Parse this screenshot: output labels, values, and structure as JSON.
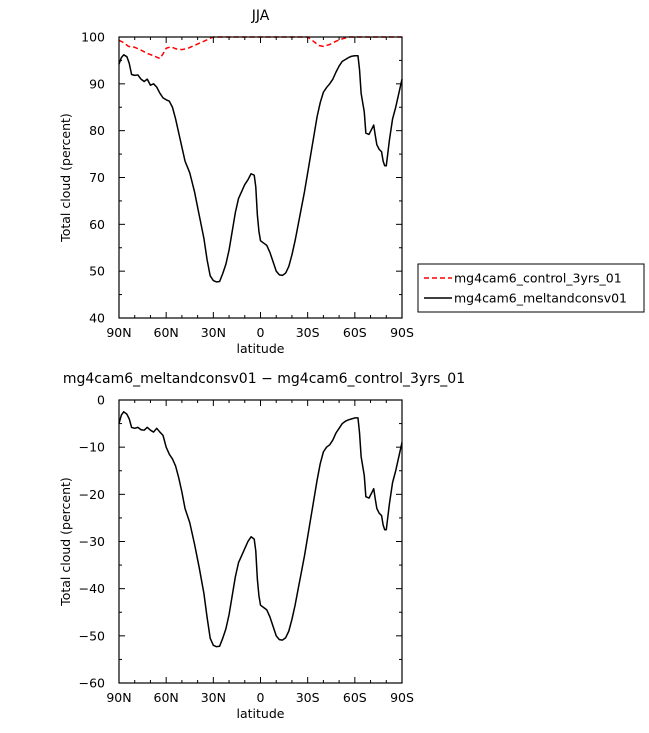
{
  "chart_data": [
    {
      "type": "line",
      "title": "JJA",
      "xlabel": "latitude",
      "ylabel": "Total cloud (percent)",
      "xlim": [
        90,
        -90
      ],
      "ylim": [
        40,
        100
      ],
      "xticks": [
        90,
        60,
        30,
        0,
        -30,
        -60,
        -90
      ],
      "xtick_labels": [
        "90N",
        "60N",
        "30N",
        "0",
        "30S",
        "60S",
        "90S"
      ],
      "yticks": [
        40,
        50,
        60,
        70,
        80,
        90,
        100
      ],
      "ytick_labels": [
        "40",
        "50",
        "60",
        "70",
        "80",
        "90",
        "100"
      ],
      "grid": false,
      "legend_position": "right",
      "series": [
        {
          "name": "mg4cam6_control_3yrs_01",
          "color": "#ff0000",
          "dash": "dashed",
          "points": [
            [
              90,
              99.3
            ],
            [
              87,
              98.8
            ],
            [
              84,
              98.0
            ],
            [
              80,
              97.8
            ],
            [
              76,
              97.2
            ],
            [
              72,
              96.5
            ],
            [
              68,
              96.0
            ],
            [
              64,
              95.4
            ],
            [
              62,
              96.4
            ],
            [
              60,
              97.6
            ],
            [
              57,
              97.9
            ],
            [
              54,
              97.5
            ],
            [
              50,
              97.3
            ],
            [
              46,
              97.6
            ],
            [
              42,
              98.2
            ],
            [
              38,
              98.8
            ],
            [
              34,
              99.4
            ],
            [
              30,
              100
            ],
            [
              20,
              100
            ],
            [
              0,
              100
            ],
            [
              -15,
              100
            ],
            [
              -30,
              100
            ],
            [
              -34,
              99.0
            ],
            [
              -37,
              98.2
            ],
            [
              -40,
              98.0
            ],
            [
              -44,
              98.4
            ],
            [
              -48,
              99.1
            ],
            [
              -52,
              99.6
            ],
            [
              -56,
              100
            ],
            [
              -90,
              100
            ]
          ]
        },
        {
          "name": "mg4cam6_meltandconsv01",
          "color": "#000000",
          "dash": "solid",
          "points": [
            [
              90,
              94.2
            ],
            [
              88.5,
              95.6
            ],
            [
              87,
              96.2
            ],
            [
              85,
              95.8
            ],
            [
              83.5,
              94.4
            ],
            [
              82,
              92.0
            ],
            [
              80,
              91.8
            ],
            [
              78,
              91.9
            ],
            [
              76,
              91.0
            ],
            [
              74,
              90.5
            ],
            [
              72,
              91.0
            ],
            [
              70,
              89.7
            ],
            [
              68,
              90.0
            ],
            [
              66,
              89.3
            ],
            [
              64,
              88.0
            ],
            [
              62,
              87.0
            ],
            [
              60,
              86.6
            ],
            [
              58,
              86.3
            ],
            [
              56,
              85.0
            ],
            [
              54,
              82.5
            ],
            [
              52,
              79.5
            ],
            [
              50,
              76.5
            ],
            [
              48,
              73.5
            ],
            [
              45,
              71.0
            ],
            [
              42,
              67.0
            ],
            [
              39,
              62.0
            ],
            [
              36,
              57.0
            ],
            [
              34,
              52.5
            ],
            [
              32,
              49.0
            ],
            [
              30,
              48.0
            ],
            [
              28,
              47.7
            ],
            [
              26,
              47.8
            ],
            [
              24,
              49.5
            ],
            [
              22,
              51.5
            ],
            [
              20,
              54.5
            ],
            [
              18,
              58.5
            ],
            [
              16,
              62.5
            ],
            [
              14,
              65.5
            ],
            [
              12,
              67.0
            ],
            [
              10,
              68.5
            ],
            [
              8,
              69.5
            ],
            [
              6,
              70.8
            ],
            [
              4,
              70.5
            ],
            [
              3,
              68.0
            ],
            [
              2,
              62.0
            ],
            [
              1,
              58.5
            ],
            [
              0,
              56.5
            ],
            [
              -2,
              56.0
            ],
            [
              -4,
              55.5
            ],
            [
              -6,
              54.0
            ],
            [
              -8,
              52.0
            ],
            [
              -10,
              50.0
            ],
            [
              -12,
              49.2
            ],
            [
              -14,
              49.1
            ],
            [
              -16,
              49.6
            ],
            [
              -18,
              51.0
            ],
            [
              -20,
              53.5
            ],
            [
              -22,
              56.5
            ],
            [
              -24,
              60.0
            ],
            [
              -26,
              63.5
            ],
            [
              -28,
              67.0
            ],
            [
              -30,
              71.0
            ],
            [
              -32,
              75.0
            ],
            [
              -34,
              79.0
            ],
            [
              -36,
              83.0
            ],
            [
              -38,
              86.0
            ],
            [
              -40,
              88.2
            ],
            [
              -42,
              89.2
            ],
            [
              -44,
              90.0
            ],
            [
              -46,
              91.0
            ],
            [
              -48,
              92.5
            ],
            [
              -50,
              93.8
            ],
            [
              -52,
              94.8
            ],
            [
              -54,
              95.2
            ],
            [
              -56,
              95.6
            ],
            [
              -58,
              95.9
            ],
            [
              -60,
              96.0
            ],
            [
              -62,
              96.0
            ],
            [
              -63,
              93.0
            ],
            [
              -64,
              88.0
            ],
            [
              -65,
              86.0
            ],
            [
              -66,
              84.0
            ],
            [
              -67,
              79.5
            ],
            [
              -69,
              79.2
            ],
            [
              -71,
              80.5
            ],
            [
              -72,
              81.2
            ],
            [
              -73,
              79.0
            ],
            [
              -74,
              77.0
            ],
            [
              -75.5,
              76.0
            ],
            [
              -77,
              75.5
            ],
            [
              -78,
              73.5
            ],
            [
              -79,
              72.5
            ],
            [
              -80,
              72.5
            ],
            [
              -82,
              78.0
            ],
            [
              -84,
              82.5
            ],
            [
              -86,
              85.0
            ],
            [
              -88,
              88.0
            ],
            [
              -90,
              91.0
            ]
          ]
        }
      ]
    },
    {
      "type": "line",
      "title": "mg4cam6_meltandconsv01 − mg4cam6_control_3yrs_01",
      "xlabel": "latitude",
      "ylabel": "Total cloud (percent)",
      "xlim": [
        90,
        -90
      ],
      "ylim": [
        -60,
        0
      ],
      "xticks": [
        90,
        60,
        30,
        0,
        -30,
        -60,
        -90
      ],
      "xtick_labels": [
        "90N",
        "60N",
        "30N",
        "0",
        "30S",
        "60S",
        "90S"
      ],
      "yticks": [
        -60,
        -50,
        -40,
        -30,
        -20,
        -10,
        0
      ],
      "ytick_labels": [
        "−60",
        "−50",
        "−40",
        "−30",
        "−20",
        "−10",
        "0"
      ],
      "grid": false,
      "series": [
        {
          "color": "#000000",
          "dash": "solid",
          "points": [
            [
              90,
              -5.0
            ],
            [
              88.5,
              -3.2
            ],
            [
              87,
              -2.5
            ],
            [
              85,
              -3.0
            ],
            [
              83.5,
              -4.0
            ],
            [
              82,
              -5.8
            ],
            [
              80,
              -6.0
            ],
            [
              78,
              -5.8
            ],
            [
              76,
              -6.3
            ],
            [
              74,
              -6.4
            ],
            [
              72,
              -5.8
            ],
            [
              70,
              -6.4
            ],
            [
              68,
              -6.8
            ],
            [
              66,
              -6.0
            ],
            [
              64,
              -6.8
            ],
            [
              62,
              -7.5
            ],
            [
              60,
              -10.0
            ],
            [
              58,
              -11.5
            ],
            [
              56,
              -12.5
            ],
            [
              54,
              -14.0
            ],
            [
              52,
              -16.5
            ],
            [
              50,
              -19.5
            ],
            [
              48,
              -23.0
            ],
            [
              45,
              -26.0
            ],
            [
              42,
              -30.5
            ],
            [
              39,
              -35.5
            ],
            [
              36,
              -41.0
            ],
            [
              34,
              -46.0
            ],
            [
              32,
              -50.5
            ],
            [
              30,
              -52.0
            ],
            [
              28,
              -52.3
            ],
            [
              26,
              -52.2
            ],
            [
              24,
              -50.5
            ],
            [
              22,
              -48.5
            ],
            [
              20,
              -45.5
            ],
            [
              18,
              -41.5
            ],
            [
              16,
              -37.5
            ],
            [
              14,
              -34.5
            ],
            [
              12,
              -33.0
            ],
            [
              10,
              -31.5
            ],
            [
              8,
              -30.0
            ],
            [
              6,
              -29.0
            ],
            [
              4,
              -29.5
            ],
            [
              3,
              -32.0
            ],
            [
              2,
              -38.0
            ],
            [
              1,
              -41.5
            ],
            [
              0,
              -43.5
            ],
            [
              -2,
              -44.0
            ],
            [
              -4,
              -44.5
            ],
            [
              -6,
              -46.0
            ],
            [
              -8,
              -48.0
            ],
            [
              -10,
              -50.0
            ],
            [
              -12,
              -50.8
            ],
            [
              -14,
              -50.9
            ],
            [
              -16,
              -50.4
            ],
            [
              -18,
              -49.0
            ],
            [
              -20,
              -46.5
            ],
            [
              -22,
              -43.5
            ],
            [
              -24,
              -40.0
            ],
            [
              -26,
              -36.5
            ],
            [
              -28,
              -33.0
            ],
            [
              -30,
              -29.0
            ],
            [
              -32,
              -25.0
            ],
            [
              -34,
              -21.0
            ],
            [
              -36,
              -17.0
            ],
            [
              -38,
              -13.5
            ],
            [
              -40,
              -11.0
            ],
            [
              -42,
              -10.0
            ],
            [
              -44,
              -9.5
            ],
            [
              -46,
              -8.5
            ],
            [
              -48,
              -7.0
            ],
            [
              -50,
              -6.0
            ],
            [
              -52,
              -5.0
            ],
            [
              -54,
              -4.5
            ],
            [
              -56,
              -4.2
            ],
            [
              -58,
              -4.0
            ],
            [
              -60,
              -3.8
            ],
            [
              -62,
              -3.8
            ],
            [
              -63,
              -7.0
            ],
            [
              -64,
              -12.0
            ],
            [
              -65,
              -14.0
            ],
            [
              -66,
              -16.0
            ],
            [
              -67,
              -20.5
            ],
            [
              -69,
              -20.8
            ],
            [
              -71,
              -19.5
            ],
            [
              -72,
              -18.8
            ],
            [
              -73,
              -21.0
            ],
            [
              -74,
              -23.0
            ],
            [
              -75.5,
              -24.0
            ],
            [
              -77,
              -24.5
            ],
            [
              -78,
              -26.5
            ],
            [
              -79,
              -27.5
            ],
            [
              -80,
              -27.5
            ],
            [
              -82,
              -22.0
            ],
            [
              -84,
              -17.5
            ],
            [
              -86,
              -15.0
            ],
            [
              -88,
              -12.0
            ],
            [
              -90,
              -9.0
            ]
          ]
        }
      ]
    }
  ]
}
